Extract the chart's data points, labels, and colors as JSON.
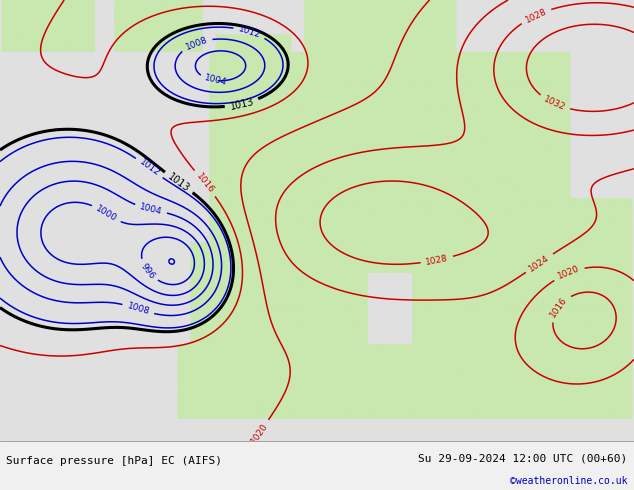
{
  "title_left": "Surface pressure [hPa] EC (AIFS)",
  "title_right": "Su 29-09-2024 12:00 UTC (00+60)",
  "credit": "©weatheronline.co.uk",
  "fig_width": 6.34,
  "fig_height": 4.9,
  "bg_color_ocean": "#e8e8e8",
  "land_color": [
    200,
    232,
    176
  ],
  "ocean_color": [
    224,
    224,
    224
  ],
  "color_low": "#0000cc",
  "color_high": "#cc0000",
  "color_1013": "#000000",
  "footer_bg": "#f0f0f0",
  "font_size_footer": 8,
  "font_size_label": 6.5
}
